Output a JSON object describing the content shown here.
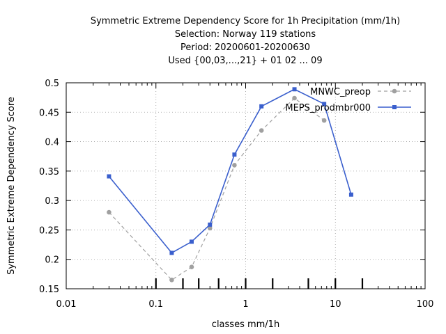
{
  "chart_data": {
    "type": "line",
    "title_lines": [
      "Symmetric Extreme Dependency Score  for 1h Precipitation (mm/1h)",
      "Selection: Norway    119 stations",
      "Period: 20200601-20200630",
      "Used {00,03,...,21} + 01 02 ... 09"
    ],
    "xlabel": "classes mm/1h",
    "ylabel": "Symmetric Extreme Dependency Score",
    "x_scale": "log",
    "xlim": [
      0.01,
      100
    ],
    "ylim": [
      0.15,
      0.5
    ],
    "x_ticks": [
      0.01,
      0.1,
      1,
      10,
      100
    ],
    "x_tick_labels": [
      "0.01",
      "0.1",
      "1",
      "10",
      "100"
    ],
    "y_ticks": [
      0.15,
      0.2,
      0.25,
      0.3,
      0.35,
      0.4,
      0.45,
      0.5
    ],
    "y_tick_labels": [
      "0.15",
      "0.2",
      "0.25",
      "0.3",
      "0.35",
      "0.4",
      "0.45",
      "0.5"
    ],
    "class_markers": [
      0.1,
      0.2,
      0.3,
      0.5,
      1,
      2,
      5,
      10,
      20
    ],
    "grid": true,
    "legend_position": "top-right",
    "series": [
      {
        "name": "MNWC_preop",
        "color": "#a0a0a0",
        "dash": true,
        "x": [
          0.03,
          0.15,
          0.25,
          0.4,
          0.75,
          1.5,
          3.5,
          7.5
        ],
        "y": [
          0.28,
          0.165,
          0.187,
          0.253,
          0.36,
          0.419,
          0.474,
          0.436
        ]
      },
      {
        "name": "MEPS_prodmbr000",
        "color": "#3a5fcd",
        "dash": false,
        "x": [
          0.03,
          0.15,
          0.25,
          0.4,
          0.75,
          1.5,
          3.5,
          7.5,
          15
        ],
        "y": [
          0.341,
          0.211,
          0.23,
          0.259,
          0.378,
          0.46,
          0.489,
          0.464,
          0.31
        ]
      }
    ]
  }
}
